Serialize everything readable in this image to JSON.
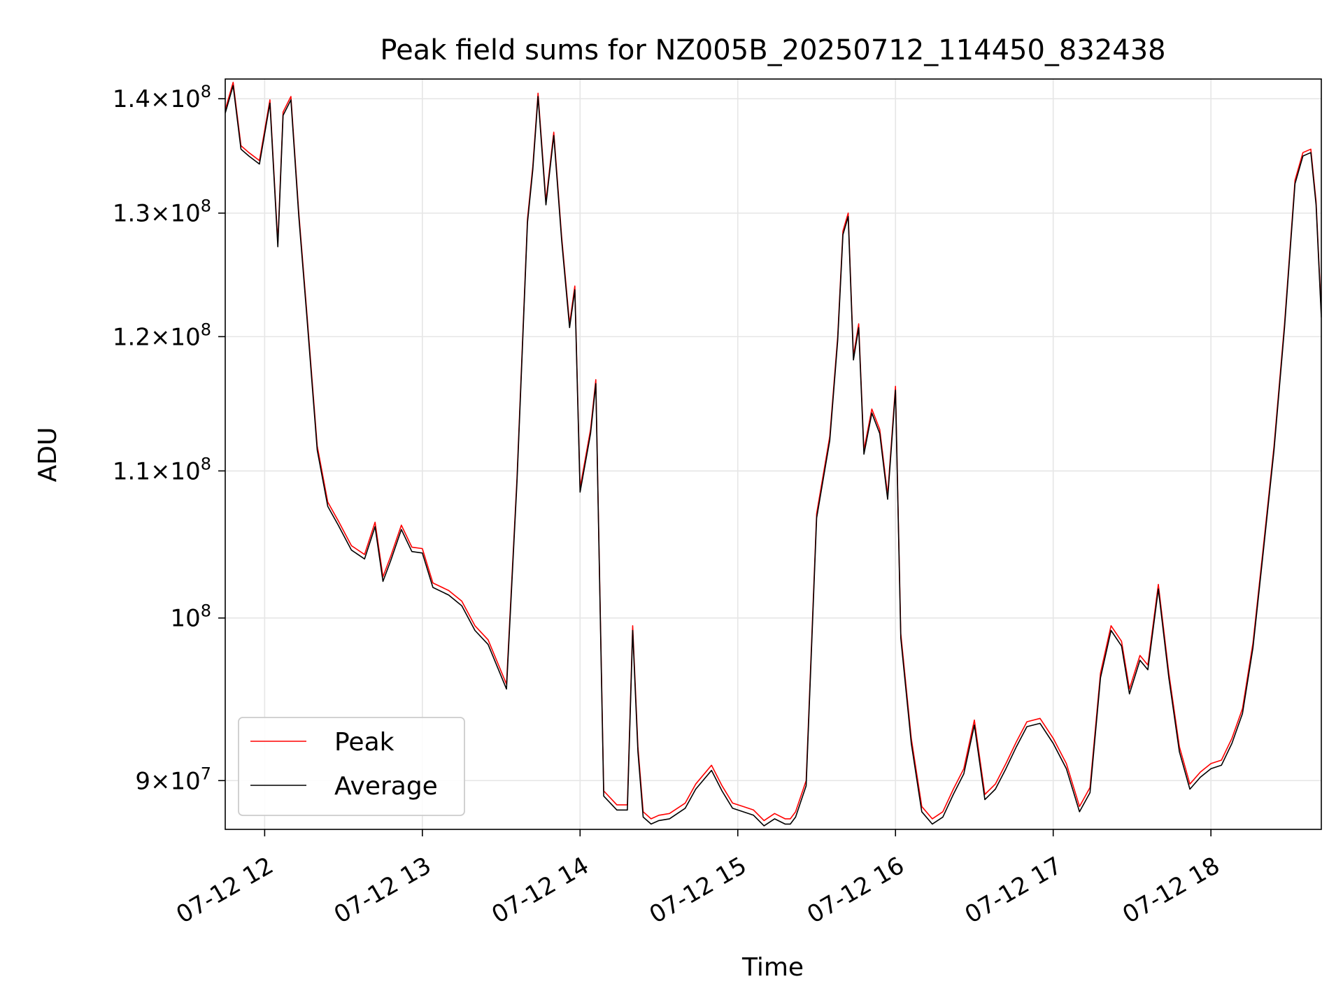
{
  "chart_data": {
    "type": "line",
    "title": "Peak field sums for NZ005B_20250712_114450_832438",
    "xlabel": "Time",
    "ylabel": "ADU",
    "y_scale": "log",
    "grid": true,
    "legend_position": "lower-left",
    "colors": {
      "Peak": "#ff0000",
      "Average": "#000000",
      "grid": "#e6e6e6"
    },
    "xlim": [
      "2025-07-12 11:45",
      "2025-07-12 18:42"
    ],
    "ylim": [
      87200000,
      141800000
    ],
    "x_ticks": [
      {
        "value": "2025-07-12 12:00",
        "label": "07-12 12"
      },
      {
        "value": "2025-07-12 13:00",
        "label": "07-12 13"
      },
      {
        "value": "2025-07-12 14:00",
        "label": "07-12 14"
      },
      {
        "value": "2025-07-12 15:00",
        "label": "07-12 15"
      },
      {
        "value": "2025-07-12 16:00",
        "label": "07-12 16"
      },
      {
        "value": "2025-07-12 17:00",
        "label": "07-12 17"
      },
      {
        "value": "2025-07-12 18:00",
        "label": "07-12 18"
      }
    ],
    "y_ticks": [
      {
        "value": 140000000,
        "mantissa": "1.4",
        "exponent": "8"
      },
      {
        "value": 130000000,
        "mantissa": "1.3",
        "exponent": "8"
      },
      {
        "value": 120000000,
        "mantissa": "1.2",
        "exponent": "8"
      },
      {
        "value": 110000000,
        "mantissa": "1.1",
        "exponent": "8"
      },
      {
        "value": 100000000,
        "mantissa": "",
        "exponent": "8"
      },
      {
        "value": 90000000,
        "mantissa": "9",
        "exponent": "7"
      }
    ],
    "series": [
      {
        "name": "Peak",
        "color": "#ff0000",
        "x": [
          "11:45",
          "11:48",
          "11:51",
          "11:54",
          "11:58",
          "12:02",
          "12:05",
          "12:07",
          "12:10",
          "12:13",
          "12:16",
          "12:20",
          "12:24",
          "12:28",
          "12:33",
          "12:38",
          "12:42",
          "12:45",
          "12:48",
          "12:52",
          "12:56",
          "13:00",
          "13:04",
          "13:10",
          "13:15",
          "13:20",
          "13:25",
          "13:32",
          "13:36",
          "13:40",
          "13:42",
          "13:44",
          "13:47",
          "13:50",
          "13:53",
          "13:56",
          "13:58",
          "14:00",
          "14:04",
          "14:06",
          "14:09",
          "14:14",
          "14:18",
          "14:20",
          "14:22",
          "14:24",
          "14:27",
          "14:30",
          "14:34",
          "14:40",
          "14:44",
          "14:50",
          "14:54",
          "14:58",
          "15:02",
          "15:06",
          "15:10",
          "15:14",
          "15:18",
          "15:20",
          "15:22",
          "15:26",
          "15:30",
          "15:35",
          "15:38",
          "15:40",
          "15:42",
          "15:44",
          "15:46",
          "15:48",
          "15:51",
          "15:54",
          "15:57",
          "16:00",
          "16:02",
          "16:06",
          "16:10",
          "16:14",
          "16:18",
          "16:22",
          "16:26",
          "16:30",
          "16:34",
          "16:38",
          "16:42",
          "16:46",
          "16:50",
          "16:55",
          "17:00",
          "17:05",
          "17:10",
          "17:14",
          "17:18",
          "17:22",
          "17:26",
          "17:29",
          "17:33",
          "17:36",
          "17:40",
          "17:44",
          "17:48",
          "17:52",
          "17:56",
          "18:00",
          "18:04",
          "18:08",
          "18:12",
          "18:16",
          "18:20",
          "18:24",
          "18:28",
          "18:32",
          "18:35",
          "18:38",
          "18:40",
          "18:42"
        ],
        "y": [
          139000000,
          141500000,
          135800000,
          135200000,
          134500000,
          139900000,
          127500000,
          138800000,
          140200000,
          130000000,
          122000000,
          111800000,
          107800000,
          106500000,
          104800000,
          104200000,
          106400000,
          102700000,
          104100000,
          106200000,
          104700000,
          104600000,
          102300000,
          101800000,
          101100000,
          99500000,
          98600000,
          95800000,
          109500000,
          129500000,
          134000000,
          140500000,
          131000000,
          137000000,
          128000000,
          121000000,
          124000000,
          108800000,
          113000000,
          116700000,
          89400000,
          88600000,
          88600000,
          99500000,
          92000000,
          88200000,
          87800000,
          88000000,
          88100000,
          88700000,
          89800000,
          90900000,
          89700000,
          88700000,
          88500000,
          88300000,
          87700000,
          88100000,
          87800000,
          87800000,
          88200000,
          90000000,
          107000000,
          112500000,
          120000000,
          128500000,
          130000000,
          118500000,
          121000000,
          111500000,
          114500000,
          113000000,
          108300000,
          116200000,
          99000000,
          92500000,
          88500000,
          87800000,
          88200000,
          89500000,
          90700000,
          93600000,
          89200000,
          89800000,
          91000000,
          92300000,
          93500000,
          93700000,
          92500000,
          91000000,
          88500000,
          89600000,
          96500000,
          99500000,
          98500000,
          95500000,
          97600000,
          97000000,
          102200000,
          96500000,
          92000000,
          89800000,
          90500000,
          91000000,
          91200000,
          92500000,
          94300000,
          98400000,
          104800000,
          111800000,
          121000000,
          132800000,
          135200000,
          135500000,
          131000000,
          121800000
        ]
      },
      {
        "name": "Average",
        "color": "#000000",
        "x": [
          "11:45",
          "11:48",
          "11:51",
          "11:54",
          "11:58",
          "12:02",
          "12:05",
          "12:07",
          "12:10",
          "12:13",
          "12:16",
          "12:20",
          "12:24",
          "12:28",
          "12:33",
          "12:38",
          "12:42",
          "12:45",
          "12:48",
          "12:52",
          "12:56",
          "13:00",
          "13:04",
          "13:10",
          "13:15",
          "13:20",
          "13:25",
          "13:32",
          "13:36",
          "13:40",
          "13:42",
          "13:44",
          "13:47",
          "13:50",
          "13:53",
          "13:56",
          "13:58",
          "14:00",
          "14:04",
          "14:06",
          "14:09",
          "14:14",
          "14:18",
          "14:20",
          "14:22",
          "14:24",
          "14:27",
          "14:30",
          "14:34",
          "14:40",
          "14:44",
          "14:50",
          "14:54",
          "14:58",
          "15:02",
          "15:06",
          "15:10",
          "15:14",
          "15:18",
          "15:20",
          "15:22",
          "15:26",
          "15:30",
          "15:35",
          "15:38",
          "15:40",
          "15:42",
          "15:44",
          "15:46",
          "15:48",
          "15:51",
          "15:54",
          "15:57",
          "16:00",
          "16:02",
          "16:06",
          "16:10",
          "16:14",
          "16:18",
          "16:22",
          "16:26",
          "16:30",
          "16:34",
          "16:38",
          "16:42",
          "16:46",
          "16:50",
          "16:55",
          "17:00",
          "17:05",
          "17:10",
          "17:14",
          "17:18",
          "17:22",
          "17:26",
          "17:29",
          "17:33",
          "17:36",
          "17:40",
          "17:44",
          "17:48",
          "17:52",
          "17:56",
          "18:00",
          "18:04",
          "18:08",
          "18:12",
          "18:16",
          "18:20",
          "18:24",
          "18:28",
          "18:32",
          "18:35",
          "18:38",
          "18:40",
          "18:42"
        ],
        "y": [
          138700000,
          141200000,
          135500000,
          134900000,
          134200000,
          139600000,
          127200000,
          138500000,
          139900000,
          129700000,
          121700000,
          111500000,
          107500000,
          106200000,
          104500000,
          103900000,
          106100000,
          102400000,
          103800000,
          105900000,
          104400000,
          104300000,
          102000000,
          101500000,
          100800000,
          99200000,
          98300000,
          95500000,
          109200000,
          129200000,
          133700000,
          140200000,
          130700000,
          136700000,
          127700000,
          120700000,
          123700000,
          108500000,
          112700000,
          116400000,
          89100000,
          88300000,
          88300000,
          99200000,
          91700000,
          87900000,
          87500000,
          87700000,
          87800000,
          88400000,
          89500000,
          90600000,
          89400000,
          88400000,
          88200000,
          88000000,
          87400000,
          87800000,
          87500000,
          87500000,
          87900000,
          89700000,
          106700000,
          112200000,
          119700000,
          128200000,
          129700000,
          118200000,
          120700000,
          111200000,
          114200000,
          112700000,
          108000000,
          115900000,
          98700000,
          92200000,
          88200000,
          87500000,
          87900000,
          89200000,
          90400000,
          93300000,
          88900000,
          89500000,
          90700000,
          92000000,
          93200000,
          93400000,
          92200000,
          90700000,
          88200000,
          89300000,
          96200000,
          99200000,
          98200000,
          95200000,
          97300000,
          96700000,
          101900000,
          96200000,
          91700000,
          89500000,
          90200000,
          90700000,
          90900000,
          92200000,
          94000000,
          98100000,
          104500000,
          111500000,
          120700000,
          132500000,
          134900000,
          135200000,
          130700000,
          121500000
        ]
      }
    ]
  }
}
